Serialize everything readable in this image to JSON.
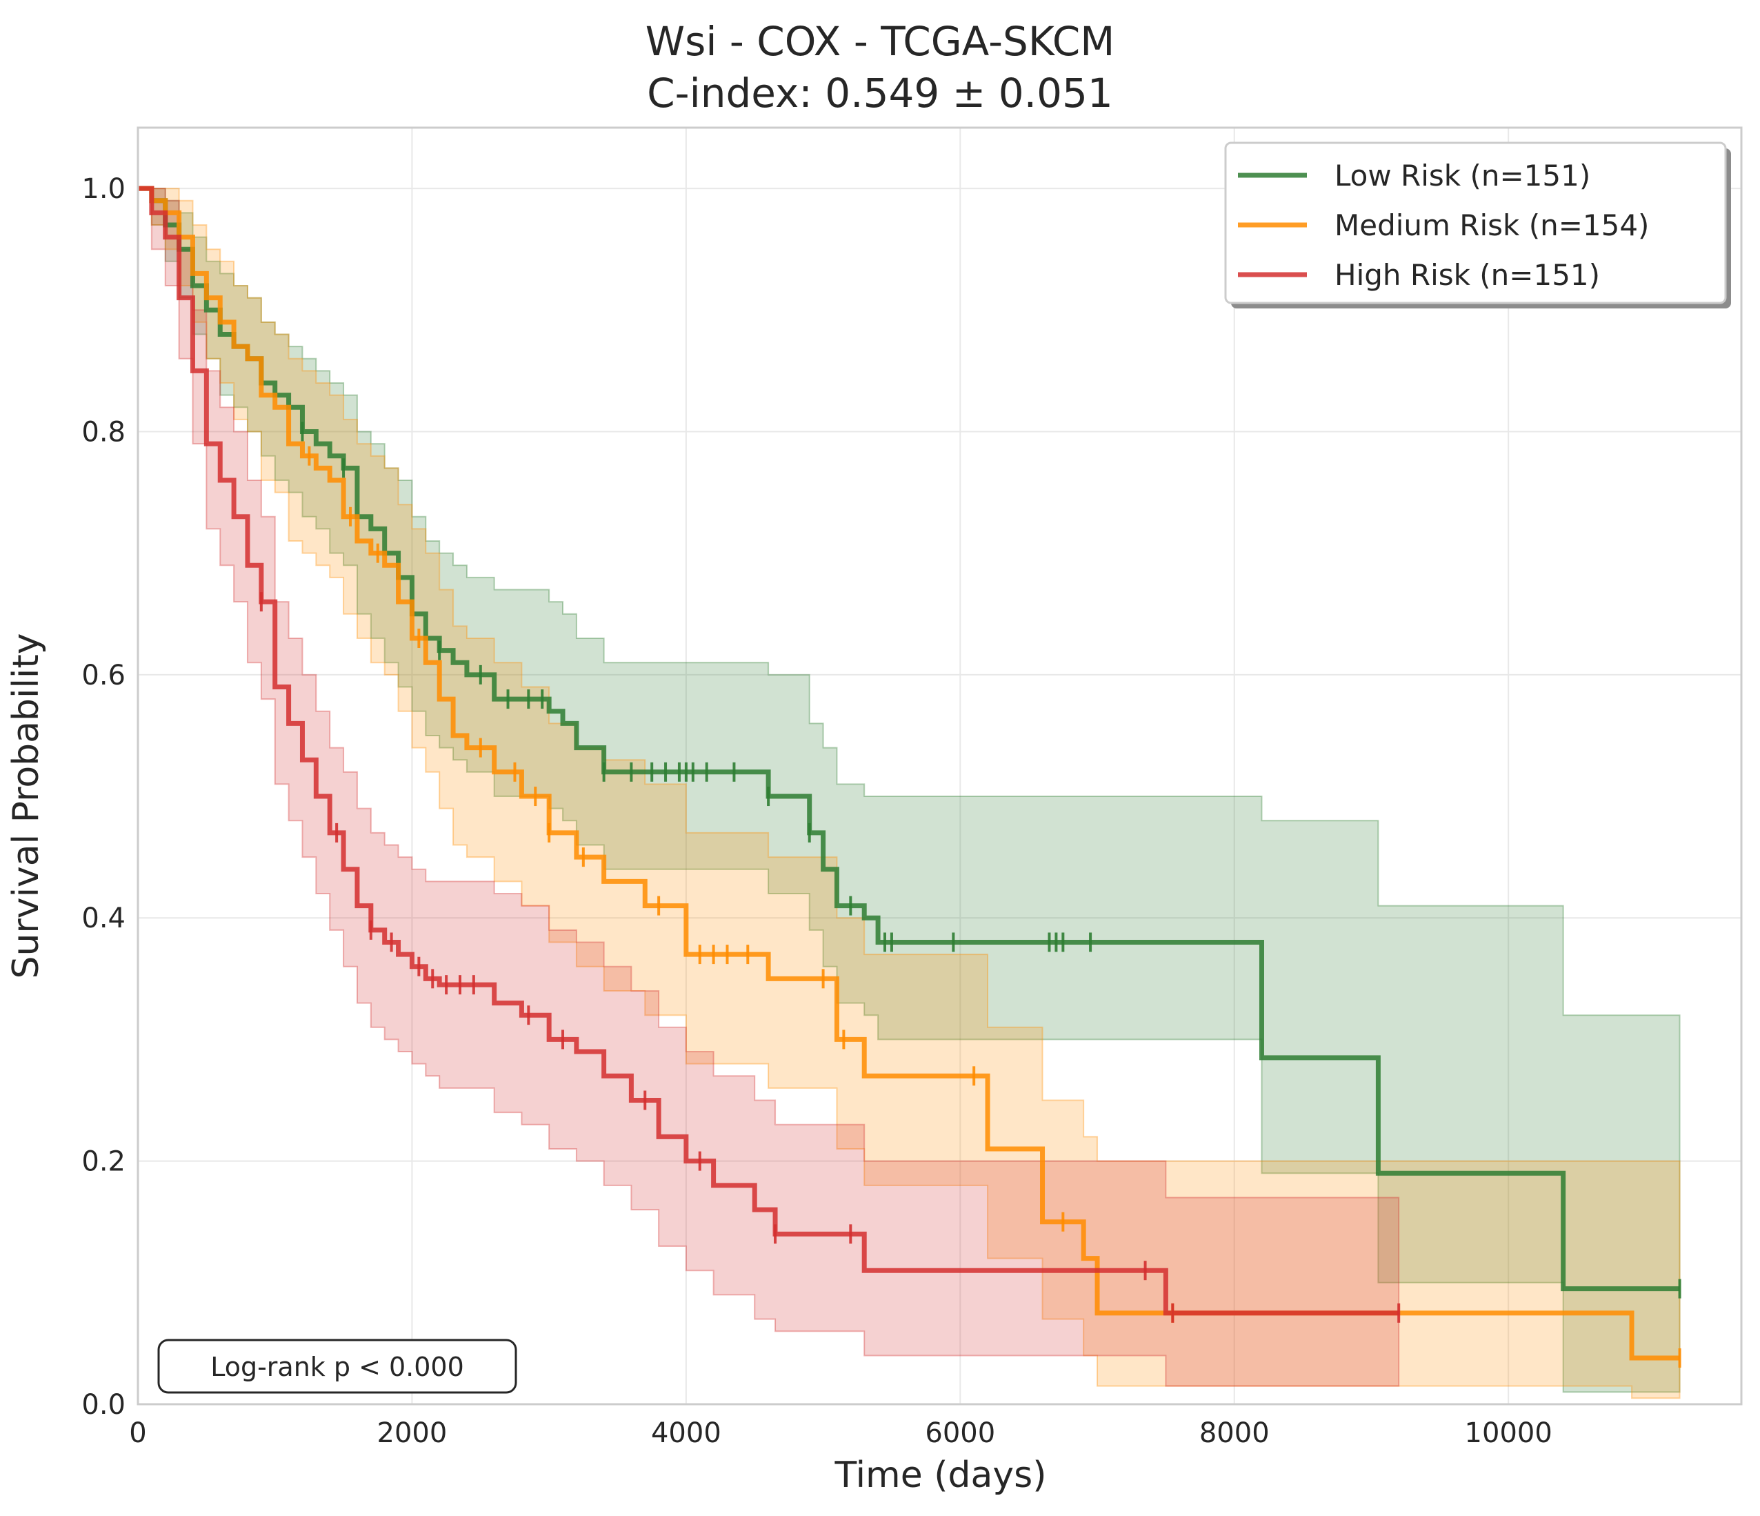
{
  "chart_data": {
    "type": "line",
    "subtype": "kaplan-meier",
    "title": "Wsi - COX - TCGA-SKCM",
    "subtitle": "C-index: 0.549 ± 0.051",
    "xlabel": "Time (days)",
    "ylabel": "Survival Probability",
    "xlim": [
      0,
      11700
    ],
    "ylim": [
      0,
      1.05
    ],
    "xticks": [
      0,
      2000,
      4000,
      6000,
      8000,
      10000
    ],
    "yticks": [
      0.0,
      0.2,
      0.4,
      0.6,
      0.8,
      1.0
    ],
    "xtick_labels": [
      "0",
      "2000",
      "4000",
      "6000",
      "8000",
      "10000"
    ],
    "ytick_labels": [
      "0.0",
      "0.2",
      "0.4",
      "0.6",
      "0.8",
      "1.0"
    ],
    "grid": true,
    "legend_position": "top-right",
    "annotation": "Log-rank p < 0.000",
    "series": [
      {
        "name": "Low Risk (n=151)",
        "color": "#2e7d32",
        "x": [
          0,
          100,
          200,
          300,
          400,
          500,
          600,
          700,
          800,
          900,
          1000,
          1100,
          1200,
          1300,
          1400,
          1500,
          1600,
          1700,
          1800,
          1900,
          2000,
          2100,
          2200,
          2300,
          2400,
          2600,
          2800,
          3000,
          3100,
          3200,
          3400,
          4600,
          4900,
          5000,
          5100,
          5300,
          5400,
          8200,
          9050,
          10400,
          11250
        ],
        "y": [
          1.0,
          0.99,
          0.97,
          0.95,
          0.92,
          0.9,
          0.88,
          0.87,
          0.86,
          0.84,
          0.83,
          0.82,
          0.8,
          0.79,
          0.78,
          0.77,
          0.73,
          0.72,
          0.7,
          0.68,
          0.65,
          0.63,
          0.62,
          0.61,
          0.6,
          0.58,
          0.58,
          0.57,
          0.56,
          0.54,
          0.52,
          0.5,
          0.47,
          0.44,
          0.41,
          0.4,
          0.38,
          0.285,
          0.19,
          0.095,
          0.095
        ],
        "ci_lower": [
          1.0,
          0.97,
          0.94,
          0.91,
          0.88,
          0.86,
          0.83,
          0.82,
          0.8,
          0.78,
          0.76,
          0.75,
          0.73,
          0.72,
          0.7,
          0.69,
          0.65,
          0.63,
          0.61,
          0.59,
          0.57,
          0.55,
          0.54,
          0.53,
          0.52,
          0.5,
          0.5,
          0.49,
          0.48,
          0.46,
          0.44,
          0.42,
          0.39,
          0.36,
          0.33,
          0.32,
          0.3,
          0.19,
          0.1,
          0.01,
          0.01
        ],
        "ci_upper": [
          1.0,
          1.0,
          0.99,
          0.98,
          0.96,
          0.94,
          0.93,
          0.92,
          0.91,
          0.89,
          0.88,
          0.87,
          0.86,
          0.85,
          0.84,
          0.83,
          0.8,
          0.79,
          0.77,
          0.76,
          0.73,
          0.71,
          0.7,
          0.69,
          0.68,
          0.67,
          0.67,
          0.66,
          0.65,
          0.63,
          0.61,
          0.6,
          0.56,
          0.54,
          0.51,
          0.5,
          0.5,
          0.48,
          0.41,
          0.32,
          0.15
        ],
        "censor_x": [
          1200,
          1500,
          2200,
          2500,
          2700,
          2850,
          2950,
          3400,
          3600,
          3750,
          3850,
          3950,
          4000,
          4050,
          4150,
          4350,
          4600,
          4900,
          5200,
          5450,
          5500,
          5950,
          6650,
          6700,
          6750,
          6950,
          11250
        ]
      },
      {
        "name": "Medium Risk (n=154)",
        "color": "#ff8c00",
        "x": [
          0,
          100,
          200,
          300,
          400,
          500,
          600,
          700,
          800,
          900,
          1000,
          1100,
          1200,
          1300,
          1400,
          1500,
          1600,
          1700,
          1800,
          1900,
          2000,
          2100,
          2200,
          2300,
          2400,
          2600,
          2800,
          3000,
          3200,
          3400,
          3700,
          4000,
          4600,
          5100,
          5300,
          6200,
          6600,
          6900,
          7000,
          10900,
          11250
        ],
        "y": [
          1.0,
          0.99,
          0.98,
          0.96,
          0.93,
          0.91,
          0.89,
          0.87,
          0.86,
          0.83,
          0.82,
          0.79,
          0.78,
          0.77,
          0.76,
          0.73,
          0.71,
          0.7,
          0.69,
          0.66,
          0.63,
          0.61,
          0.58,
          0.55,
          0.54,
          0.52,
          0.5,
          0.47,
          0.45,
          0.43,
          0.41,
          0.37,
          0.35,
          0.3,
          0.27,
          0.21,
          0.15,
          0.12,
          0.075,
          0.038,
          0.038
        ],
        "ci_lower": [
          1.0,
          0.97,
          0.95,
          0.92,
          0.89,
          0.86,
          0.84,
          0.81,
          0.8,
          0.76,
          0.75,
          0.71,
          0.7,
          0.69,
          0.68,
          0.65,
          0.63,
          0.61,
          0.6,
          0.57,
          0.54,
          0.52,
          0.49,
          0.46,
          0.45,
          0.43,
          0.41,
          0.38,
          0.36,
          0.34,
          0.32,
          0.28,
          0.26,
          0.21,
          0.18,
          0.12,
          0.07,
          0.04,
          0.015,
          0.005,
          0.005
        ],
        "ci_upper": [
          1.0,
          1.0,
          1.0,
          0.99,
          0.97,
          0.95,
          0.94,
          0.92,
          0.91,
          0.89,
          0.88,
          0.86,
          0.85,
          0.84,
          0.83,
          0.81,
          0.79,
          0.78,
          0.77,
          0.74,
          0.72,
          0.7,
          0.67,
          0.64,
          0.63,
          0.61,
          0.59,
          0.56,
          0.54,
          0.53,
          0.51,
          0.47,
          0.45,
          0.4,
          0.37,
          0.31,
          0.25,
          0.22,
          0.2,
          0.2,
          0.2
        ],
        "censor_x": [
          1250,
          1550,
          1750,
          2050,
          2500,
          2750,
          2900,
          3000,
          3250,
          3800,
          4100,
          4200,
          4300,
          4450,
          5000,
          5150,
          6100,
          6750,
          7550,
          11250
        ]
      },
      {
        "name": "High Risk (n=151)",
        "color": "#d32f2f",
        "x": [
          0,
          100,
          200,
          300,
          400,
          500,
          600,
          700,
          800,
          900,
          1000,
          1100,
          1200,
          1300,
          1400,
          1500,
          1600,
          1700,
          1800,
          1900,
          2000,
          2100,
          2200,
          2400,
          2600,
          2800,
          3000,
          3200,
          3400,
          3600,
          3800,
          4000,
          4200,
          4500,
          4650,
          5300,
          7000,
          7500,
          9200
        ],
        "y": [
          1.0,
          0.98,
          0.96,
          0.91,
          0.85,
          0.79,
          0.76,
          0.73,
          0.69,
          0.66,
          0.59,
          0.56,
          0.53,
          0.5,
          0.47,
          0.44,
          0.41,
          0.39,
          0.38,
          0.37,
          0.36,
          0.35,
          0.345,
          0.345,
          0.33,
          0.32,
          0.3,
          0.29,
          0.27,
          0.25,
          0.22,
          0.2,
          0.18,
          0.16,
          0.14,
          0.11,
          0.11,
          0.075,
          0.075
        ],
        "ci_lower": [
          1.0,
          0.95,
          0.92,
          0.86,
          0.79,
          0.72,
          0.69,
          0.66,
          0.61,
          0.58,
          0.51,
          0.48,
          0.45,
          0.42,
          0.39,
          0.36,
          0.33,
          0.31,
          0.3,
          0.29,
          0.28,
          0.27,
          0.26,
          0.26,
          0.24,
          0.23,
          0.21,
          0.2,
          0.18,
          0.16,
          0.13,
          0.11,
          0.09,
          0.07,
          0.06,
          0.04,
          0.04,
          0.015,
          0.015
        ],
        "ci_upper": [
          1.0,
          1.0,
          0.99,
          0.95,
          0.9,
          0.85,
          0.82,
          0.8,
          0.76,
          0.73,
          0.66,
          0.63,
          0.6,
          0.57,
          0.54,
          0.52,
          0.49,
          0.47,
          0.46,
          0.45,
          0.44,
          0.43,
          0.43,
          0.43,
          0.42,
          0.41,
          0.39,
          0.38,
          0.36,
          0.34,
          0.31,
          0.29,
          0.27,
          0.25,
          0.23,
          0.2,
          0.2,
          0.17,
          0.17
        ],
        "censor_x": [
          900,
          1450,
          1700,
          1850,
          2050,
          2150,
          2250,
          2350,
          2450,
          2850,
          3100,
          3700,
          4100,
          4650,
          5200,
          7350,
          7550,
          9200
        ]
      }
    ]
  }
}
